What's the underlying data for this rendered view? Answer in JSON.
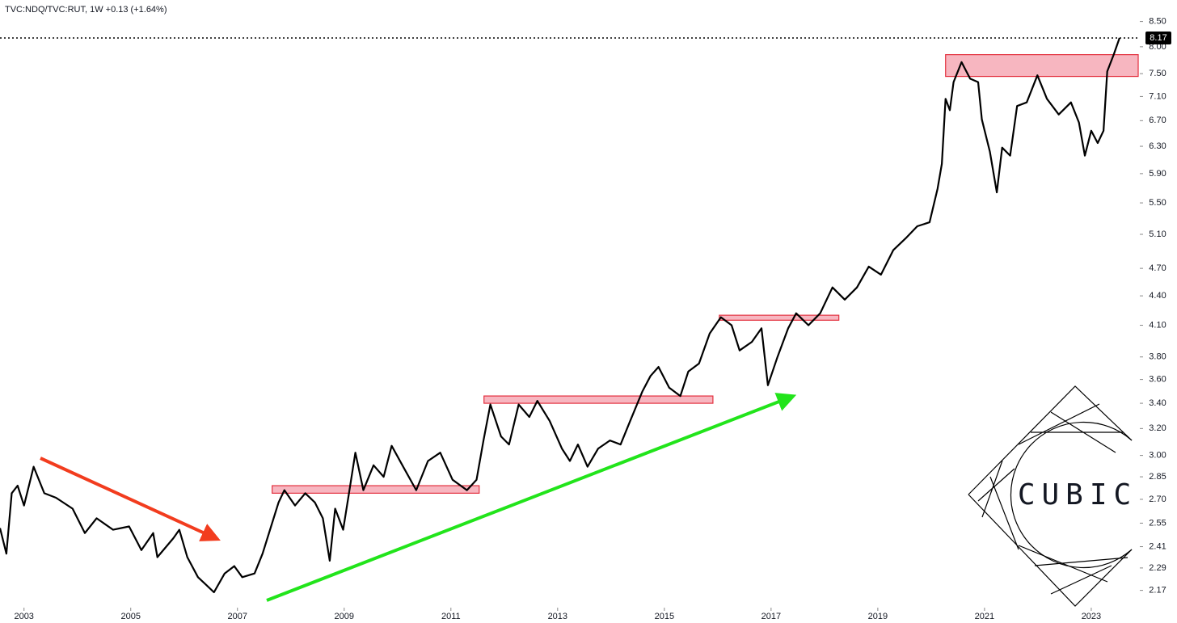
{
  "chart_data": {
    "type": "line",
    "title": "TVC:NDQ/TVC:RUT, 1W  +0.13 (+1.64%)",
    "log_scale": true,
    "grid": false,
    "color": "#000000",
    "zone_color": "#f7b6c0",
    "zone_stroke": "#e3303e",
    "xlim": [
      2002.55,
      2023.91
    ],
    "ylim": [
      2.09,
      8.95
    ],
    "xticks": [
      2003,
      2005,
      2007,
      2009,
      2011,
      2013,
      2015,
      2017,
      2019,
      2021,
      2023
    ],
    "yticks": [
      2.17,
      2.29,
      2.41,
      2.55,
      {
        "value": 2.7,
        "label": "2.70"
      },
      2.85,
      {
        "value": 3,
        "label": "3.00"
      },
      {
        "value": 3.2,
        "label": "3.20"
      },
      {
        "value": 3.4,
        "label": "3.40"
      },
      {
        "value": 3.6,
        "label": "3.60"
      },
      {
        "value": 3.8,
        "label": "3.80"
      },
      {
        "value": 4.1,
        "label": "4.10"
      },
      {
        "value": 4.4,
        "label": "4.40"
      },
      {
        "value": 4.7,
        "label": "4.70"
      },
      {
        "value": 5.1,
        "label": "5.10"
      },
      {
        "value": 5.5,
        "label": "5.50"
      },
      {
        "value": 5.9,
        "label": "5.90"
      },
      {
        "value": 6.3,
        "label": "6.30"
      },
      {
        "value": 6.7,
        "label": "6.70"
      },
      {
        "value": 7.1,
        "label": "7.10"
      },
      {
        "value": 7.5,
        "label": "7.50"
      },
      {
        "value": 8,
        "label": "8.00"
      },
      {
        "value": 8.5,
        "label": "8.50"
      }
    ],
    "x": [
      2002.55,
      2002.67,
      2002.77,
      2002.88,
      2003.0,
      2003.18,
      2003.38,
      2003.6,
      2003.91,
      2004.14,
      2004.36,
      2004.67,
      2004.97,
      2005.2,
      2005.42,
      2005.5,
      2005.8,
      2005.91,
      2006.06,
      2006.26,
      2006.41,
      2006.56,
      2006.76,
      2006.94,
      2007.09,
      2007.32,
      2007.47,
      2007.62,
      2007.77,
      2007.88,
      2008.08,
      2008.27,
      2008.45,
      2008.6,
      2008.73,
      2008.83,
      2008.98,
      2009.09,
      2009.21,
      2009.36,
      2009.55,
      2009.74,
      2009.89,
      2010.12,
      2010.35,
      2010.57,
      2010.8,
      2011.03,
      2011.3,
      2011.48,
      2011.61,
      2011.74,
      2011.94,
      2012.09,
      2012.27,
      2012.47,
      2012.62,
      2012.85,
      2013.08,
      2013.23,
      2013.38,
      2013.56,
      2013.76,
      2013.98,
      2014.18,
      2014.36,
      2014.59,
      2014.74,
      2014.89,
      2015.09,
      2015.3,
      2015.45,
      2015.65,
      2015.85,
      2016.06,
      2016.26,
      2016.41,
      2016.64,
      2016.82,
      2016.94,
      2017.12,
      2017.32,
      2017.47,
      2017.7,
      2017.92,
      2018.15,
      2018.38,
      2018.61,
      2018.83,
      2019.06,
      2019.29,
      2019.52,
      2019.74,
      2019.97,
      2020.12,
      2020.2,
      2020.27,
      2020.35,
      2020.42,
      2020.57,
      2020.73,
      2020.88,
      2020.95,
      2021.1,
      2021.23,
      2021.33,
      2021.48,
      2021.61,
      2021.79,
      2021.99,
      2022.17,
      2022.39,
      2022.62,
      2022.77,
      2022.88,
      2023.0,
      2023.12,
      2023.23,
      2023.3,
      2023.42,
      2023.53
    ],
    "values": [
      2.52,
      2.37,
      2.74,
      2.79,
      2.66,
      2.92,
      2.74,
      2.71,
      2.64,
      2.49,
      2.58,
      2.51,
      2.53,
      2.39,
      2.49,
      2.35,
      2.46,
      2.51,
      2.35,
      2.24,
      2.2,
      2.16,
      2.26,
      2.3,
      2.24,
      2.26,
      2.37,
      2.52,
      2.68,
      2.76,
      2.66,
      2.74,
      2.68,
      2.58,
      2.33,
      2.64,
      2.51,
      2.74,
      3.02,
      2.76,
      2.93,
      2.85,
      3.07,
      2.91,
      2.76,
      2.96,
      3.02,
      2.83,
      2.76,
      2.83,
      3.11,
      3.39,
      3.14,
      3.08,
      3.39,
      3.29,
      3.42,
      3.26,
      3.05,
      2.96,
      3.08,
      2.92,
      3.05,
      3.11,
      3.08,
      3.26,
      3.5,
      3.63,
      3.71,
      3.53,
      3.46,
      3.67,
      3.74,
      4.02,
      4.18,
      4.1,
      3.86,
      3.94,
      4.07,
      3.55,
      3.8,
      4.07,
      4.22,
      4.1,
      4.22,
      4.49,
      4.36,
      4.49,
      4.72,
      4.63,
      4.91,
      5.05,
      5.2,
      5.25,
      5.69,
      6.04,
      7.06,
      6.87,
      7.35,
      7.71,
      7.41,
      7.35,
      6.72,
      6.22,
      5.64,
      6.28,
      6.16,
      6.94,
      7.0,
      7.47,
      7.06,
      6.8,
      7.0,
      6.67,
      6.16,
      6.54,
      6.35,
      6.54,
      7.54,
      7.85,
      8.17
    ],
    "last_price": 8.17,
    "zones": [
      {
        "x": [
          2007.65,
          2011.53
        ],
        "y": [
          2.74,
          2.79
        ]
      },
      {
        "x": [
          2011.62,
          2015.91
        ],
        "y": [
          3.4,
          3.46
        ]
      },
      {
        "x": [
          2016.03,
          2018.27
        ],
        "y": [
          4.15,
          4.2
        ]
      },
      {
        "x": [
          2020.27,
          2023.88
        ],
        "y": [
          7.45,
          7.85
        ]
      }
    ]
  },
  "logo": {
    "text": "CUBIC"
  }
}
